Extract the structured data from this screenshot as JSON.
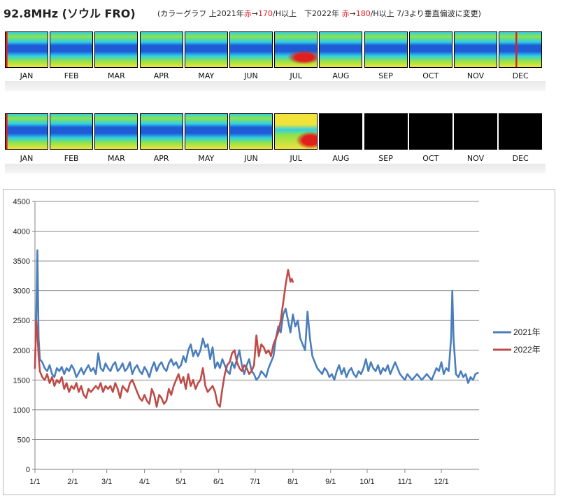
{
  "header": {
    "title": "92.8MHz (ソウル FRO)",
    "subtitle_parts": [
      "(カラーグラフ 上2021年",
      "赤",
      "→",
      "170",
      "/H以上　下2022年 ",
      "赤",
      "→",
      "180",
      "/H以上 7/3より垂直偏波に変更)"
    ]
  },
  "strips": {
    "months": [
      "JAN",
      "FEB",
      "MAR",
      "APR",
      "MAY",
      "JUN",
      "JUL",
      "AUG",
      "SEP",
      "OCT",
      "NOV",
      "DEC"
    ],
    "row1_year": "2021",
    "row2_year": "2022",
    "row2_months_with_data": 7
  },
  "colors": {
    "series_2021": "#4a7ebb",
    "series_2022": "#be4b48",
    "heat_blue": "#1f5bd6",
    "heat_cyan": "#2fd0e6",
    "heat_green": "#8ee34a",
    "heat_yellow": "#f1e33a",
    "heat_red": "#e0201c"
  },
  "chart_data": {
    "type": "line",
    "y_ticks": [
      "0",
      "500",
      "1000",
      "1500",
      "2000",
      "2500",
      "3000",
      "3500",
      "4000",
      "4500"
    ],
    "ylim": [
      0,
      4500
    ],
    "x_ticks": [
      "1/1",
      "2/1",
      "3/1",
      "4/1",
      "5/1",
      "6/1",
      "7/1",
      "8/1",
      "9/1",
      "10/1",
      "11/1",
      "12/1"
    ],
    "x_tick_days": [
      0,
      31,
      59,
      90,
      120,
      151,
      181,
      212,
      243,
      273,
      304,
      334
    ],
    "xlim": [
      0,
      365
    ],
    "grid": true,
    "legend_position": "right",
    "series": [
      {
        "name": "2021年",
        "points": [
          [
            0,
            1700
          ],
          [
            1,
            2500
          ],
          [
            2,
            3680
          ],
          [
            3,
            2200
          ],
          [
            4,
            1850
          ],
          [
            6,
            1800
          ],
          [
            8,
            1700
          ],
          [
            10,
            1650
          ],
          [
            12,
            1750
          ],
          [
            14,
            1600
          ],
          [
            16,
            1550
          ],
          [
            18,
            1700
          ],
          [
            20,
            1650
          ],
          [
            22,
            1720
          ],
          [
            24,
            1600
          ],
          [
            26,
            1700
          ],
          [
            28,
            1650
          ],
          [
            30,
            1750
          ],
          [
            32,
            1680
          ],
          [
            34,
            1550
          ],
          [
            36,
            1620
          ],
          [
            38,
            1700
          ],
          [
            40,
            1600
          ],
          [
            42,
            1680
          ],
          [
            44,
            1750
          ],
          [
            46,
            1650
          ],
          [
            48,
            1700
          ],
          [
            50,
            1600
          ],
          [
            52,
            1950
          ],
          [
            54,
            1700
          ],
          [
            56,
            1650
          ],
          [
            58,
            1780
          ],
          [
            60,
            1700
          ],
          [
            62,
            1650
          ],
          [
            64,
            1750
          ],
          [
            66,
            1800
          ],
          [
            68,
            1650
          ],
          [
            70,
            1700
          ],
          [
            72,
            1780
          ],
          [
            74,
            1650
          ],
          [
            76,
            1700
          ],
          [
            78,
            1800
          ],
          [
            80,
            1600
          ],
          [
            82,
            1700
          ],
          [
            84,
            1750
          ],
          [
            86,
            1650
          ],
          [
            88,
            1600
          ],
          [
            90,
            1720
          ],
          [
            92,
            1650
          ],
          [
            94,
            1550
          ],
          [
            96,
            1700
          ],
          [
            98,
            1800
          ],
          [
            100,
            1650
          ],
          [
            102,
            1750
          ],
          [
            104,
            1800
          ],
          [
            106,
            1700
          ],
          [
            108,
            1650
          ],
          [
            110,
            1780
          ],
          [
            112,
            1850
          ],
          [
            114,
            1750
          ],
          [
            116,
            1800
          ],
          [
            118,
            1700
          ],
          [
            120,
            1750
          ],
          [
            122,
            1900
          ],
          [
            124,
            1800
          ],
          [
            126,
            2000
          ],
          [
            128,
            2100
          ],
          [
            130,
            1900
          ],
          [
            132,
            2000
          ],
          [
            134,
            1900
          ],
          [
            136,
            2000
          ],
          [
            138,
            2200
          ],
          [
            140,
            2050
          ],
          [
            142,
            2100
          ],
          [
            144,
            1850
          ],
          [
            146,
            2050
          ],
          [
            148,
            1700
          ],
          [
            150,
            1800
          ],
          [
            152,
            1700
          ],
          [
            154,
            1850
          ],
          [
            156,
            1750
          ],
          [
            158,
            1650
          ],
          [
            160,
            1600
          ],
          [
            162,
            1800
          ],
          [
            164,
            1700
          ],
          [
            166,
            1850
          ],
          [
            168,
            2000
          ],
          [
            170,
            1750
          ],
          [
            172,
            1600
          ],
          [
            174,
            1750
          ],
          [
            176,
            1850
          ],
          [
            178,
            1650
          ],
          [
            180,
            1600
          ],
          [
            182,
            1500
          ],
          [
            184,
            1550
          ],
          [
            186,
            1650
          ],
          [
            188,
            1600
          ],
          [
            190,
            1550
          ],
          [
            192,
            1700
          ],
          [
            194,
            1800
          ],
          [
            196,
            1900
          ],
          [
            198,
            2200
          ],
          [
            200,
            2400
          ],
          [
            202,
            2300
          ],
          [
            204,
            2600
          ],
          [
            206,
            2700
          ],
          [
            208,
            2500
          ],
          [
            210,
            2300
          ],
          [
            212,
            2600
          ],
          [
            214,
            2400
          ],
          [
            216,
            2500
          ],
          [
            218,
            2200
          ],
          [
            220,
            2100
          ],
          [
            222,
            2000
          ],
          [
            224,
            2650
          ],
          [
            226,
            2200
          ],
          [
            228,
            1900
          ],
          [
            230,
            1800
          ],
          [
            232,
            1700
          ],
          [
            234,
            1650
          ],
          [
            236,
            1600
          ],
          [
            238,
            1700
          ],
          [
            240,
            1650
          ],
          [
            242,
            1550
          ],
          [
            244,
            1600
          ],
          [
            246,
            1500
          ],
          [
            248,
            1650
          ],
          [
            250,
            1750
          ],
          [
            252,
            1600
          ],
          [
            254,
            1700
          ],
          [
            256,
            1550
          ],
          [
            258,
            1650
          ],
          [
            260,
            1700
          ],
          [
            262,
            1600
          ],
          [
            264,
            1550
          ],
          [
            266,
            1650
          ],
          [
            268,
            1600
          ],
          [
            270,
            1700
          ],
          [
            272,
            1850
          ],
          [
            274,
            1650
          ],
          [
            276,
            1800
          ],
          [
            278,
            1700
          ],
          [
            280,
            1650
          ],
          [
            282,
            1750
          ],
          [
            284,
            1600
          ],
          [
            286,
            1700
          ],
          [
            288,
            1650
          ],
          [
            290,
            1750
          ],
          [
            292,
            1600
          ],
          [
            294,
            1700
          ],
          [
            296,
            1800
          ],
          [
            298,
            1700
          ],
          [
            300,
            1600
          ],
          [
            302,
            1550
          ],
          [
            304,
            1500
          ],
          [
            306,
            1600
          ],
          [
            308,
            1550
          ],
          [
            310,
            1500
          ],
          [
            312,
            1550
          ],
          [
            314,
            1600
          ],
          [
            316,
            1550
          ],
          [
            318,
            1500
          ],
          [
            320,
            1550
          ],
          [
            322,
            1600
          ],
          [
            324,
            1550
          ],
          [
            326,
            1500
          ],
          [
            328,
            1600
          ],
          [
            330,
            1700
          ],
          [
            332,
            1650
          ],
          [
            334,
            1800
          ],
          [
            336,
            1600
          ],
          [
            338,
            1700
          ],
          [
            340,
            1650
          ],
          [
            342,
            2200
          ],
          [
            343,
            3000
          ],
          [
            344,
            2200
          ],
          [
            346,
            1600
          ],
          [
            348,
            1550
          ],
          [
            350,
            1650
          ],
          [
            352,
            1550
          ],
          [
            354,
            1600
          ],
          [
            356,
            1450
          ],
          [
            358,
            1550
          ],
          [
            360,
            1500
          ],
          [
            362,
            1600
          ],
          [
            364,
            1620
          ]
        ]
      },
      {
        "name": "2022年",
        "points": [
          [
            0,
            1700
          ],
          [
            1,
            2500
          ],
          [
            2,
            2300
          ],
          [
            3,
            1900
          ],
          [
            4,
            1650
          ],
          [
            6,
            1550
          ],
          [
            8,
            1500
          ],
          [
            10,
            1600
          ],
          [
            12,
            1450
          ],
          [
            14,
            1550
          ],
          [
            16,
            1400
          ],
          [
            18,
            1500
          ],
          [
            20,
            1450
          ],
          [
            22,
            1550
          ],
          [
            24,
            1350
          ],
          [
            26,
            1450
          ],
          [
            28,
            1300
          ],
          [
            30,
            1400
          ],
          [
            32,
            1350
          ],
          [
            34,
            1450
          ],
          [
            36,
            1300
          ],
          [
            38,
            1400
          ],
          [
            40,
            1250
          ],
          [
            42,
            1200
          ],
          [
            44,
            1350
          ],
          [
            46,
            1300
          ],
          [
            48,
            1350
          ],
          [
            50,
            1400
          ],
          [
            52,
            1350
          ],
          [
            54,
            1450
          ],
          [
            56,
            1300
          ],
          [
            58,
            1400
          ],
          [
            60,
            1350
          ],
          [
            62,
            1400
          ],
          [
            64,
            1300
          ],
          [
            66,
            1450
          ],
          [
            68,
            1350
          ],
          [
            70,
            1200
          ],
          [
            72,
            1400
          ],
          [
            74,
            1350
          ],
          [
            76,
            1300
          ],
          [
            78,
            1450
          ],
          [
            80,
            1500
          ],
          [
            82,
            1400
          ],
          [
            84,
            1300
          ],
          [
            86,
            1200
          ],
          [
            88,
            1150
          ],
          [
            90,
            1250
          ],
          [
            92,
            1150
          ],
          [
            94,
            1100
          ],
          [
            96,
            1350
          ],
          [
            98,
            1250
          ],
          [
            100,
            1050
          ],
          [
            102,
            1250
          ],
          [
            104,
            1200
          ],
          [
            106,
            1100
          ],
          [
            108,
            1150
          ],
          [
            110,
            1350
          ],
          [
            112,
            1250
          ],
          [
            114,
            1400
          ],
          [
            116,
            1500
          ],
          [
            118,
            1600
          ],
          [
            120,
            1450
          ],
          [
            122,
            1550
          ],
          [
            124,
            1350
          ],
          [
            126,
            1600
          ],
          [
            128,
            1400
          ],
          [
            130,
            1500
          ],
          [
            132,
            1350
          ],
          [
            134,
            1450
          ],
          [
            136,
            1500
          ],
          [
            138,
            1700
          ],
          [
            140,
            1400
          ],
          [
            142,
            1300
          ],
          [
            144,
            1350
          ],
          [
            146,
            1400
          ],
          [
            148,
            1300
          ],
          [
            150,
            1100
          ],
          [
            152,
            1050
          ],
          [
            154,
            1350
          ],
          [
            156,
            1600
          ],
          [
            158,
            1750
          ],
          [
            160,
            1800
          ],
          [
            162,
            1950
          ],
          [
            164,
            2000
          ],
          [
            166,
            1800
          ],
          [
            168,
            1700
          ],
          [
            170,
            1650
          ],
          [
            172,
            1750
          ],
          [
            174,
            1700
          ],
          [
            176,
            1600
          ],
          [
            178,
            1650
          ],
          [
            180,
            1750
          ],
          [
            182,
            2250
          ],
          [
            184,
            1900
          ],
          [
            186,
            2100
          ],
          [
            188,
            2050
          ],
          [
            190,
            1950
          ],
          [
            192,
            2000
          ],
          [
            194,
            1900
          ],
          [
            196,
            2100
          ],
          [
            198,
            2200
          ],
          [
            200,
            2300
          ],
          [
            202,
            2500
          ],
          [
            204,
            2800
          ],
          [
            206,
            3100
          ],
          [
            208,
            3350
          ],
          [
            209,
            3250
          ],
          [
            210,
            3150
          ],
          [
            211,
            3200
          ],
          [
            212,
            3150
          ]
        ]
      }
    ]
  }
}
